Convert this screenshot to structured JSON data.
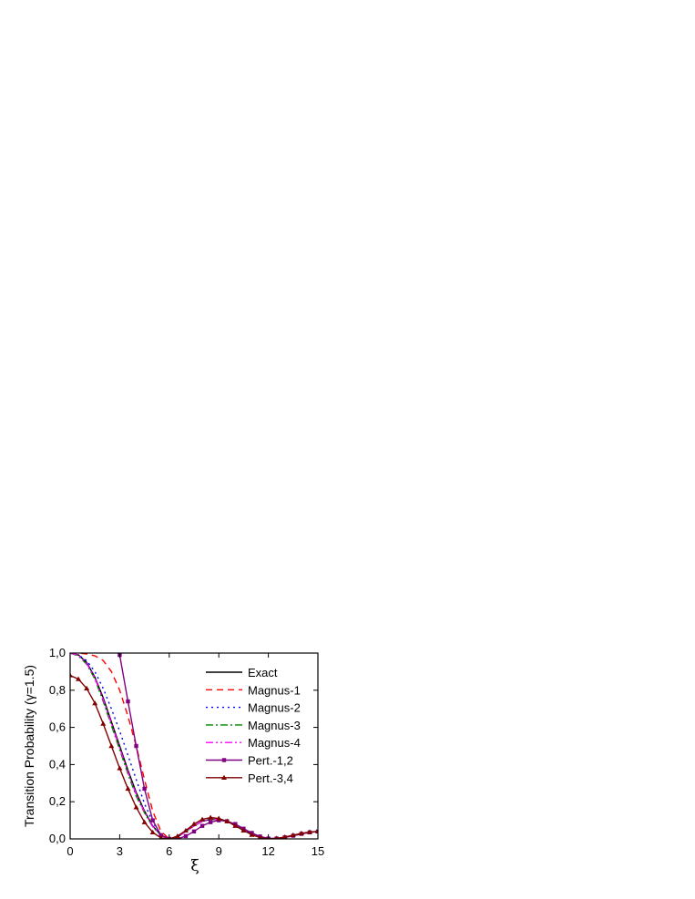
{
  "chart_data": {
    "type": "line",
    "xlabel": "ξ",
    "ylabel": "Transition Probability (γ=1.5)",
    "x": [
      0,
      0.5,
      1,
      1.5,
      2,
      2.5,
      3,
      3.5,
      4,
      4.5,
      5,
      5.5,
      6,
      6.5,
      7,
      7.5,
      8,
      8.5,
      9,
      9.5,
      10,
      10.5,
      11,
      11.5,
      12,
      12.5,
      13,
      13.5,
      14,
      14.5,
      15
    ],
    "xlim": [
      0,
      15
    ],
    "xticks": [
      0,
      3,
      6,
      9,
      12,
      15
    ],
    "ylim": [
      0,
      1
    ],
    "yticks": [
      {
        "value": 0,
        "label": "0,0"
      },
      {
        "value": 0.2,
        "label": "0,2"
      },
      {
        "value": 0.4,
        "label": "0,4"
      },
      {
        "value": 0.6,
        "label": "0,6"
      },
      {
        "value": 0.8,
        "label": "0,8"
      },
      {
        "value": 1,
        "label": "1,0"
      }
    ],
    "legend": "upper right",
    "series": [
      {
        "name": "Exact",
        "color": "#000000",
        "dash": "none",
        "marker": "none",
        "values": [
          1.0,
          0.99,
          0.95,
          0.87,
          0.76,
          0.63,
          0.5,
          0.37,
          0.25,
          0.15,
          0.07,
          0.02,
          0.0,
          0.01,
          0.04,
          0.07,
          0.095,
          0.105,
          0.105,
          0.095,
          0.075,
          0.05,
          0.03,
          0.012,
          0.002,
          0.002,
          0.008,
          0.017,
          0.027,
          0.035,
          0.04
        ]
      },
      {
        "name": "Magnus-1",
        "color": "#ff0000",
        "dash": "7,5",
        "marker": "none",
        "values": [
          1.0,
          1.0,
          0.995,
          0.985,
          0.96,
          0.9,
          0.8,
          0.66,
          0.5,
          0.32,
          0.15,
          0.04,
          0.0,
          0.01,
          0.04,
          0.07,
          0.095,
          0.105,
          0.105,
          0.095,
          0.075,
          0.05,
          0.03,
          0.012,
          0.002,
          0.002,
          0.008,
          0.017,
          0.027,
          0.035,
          0.04
        ]
      },
      {
        "name": "Magnus-2",
        "color": "#0000ff",
        "dash": "2,4",
        "marker": "none",
        "values": [
          1.0,
          0.99,
          0.96,
          0.9,
          0.81,
          0.7,
          0.58,
          0.45,
          0.32,
          0.19,
          0.09,
          0.02,
          0.0,
          0.01,
          0.04,
          0.07,
          0.095,
          0.105,
          0.105,
          0.095,
          0.075,
          0.05,
          0.03,
          0.012,
          0.002,
          0.002,
          0.008,
          0.017,
          0.027,
          0.035,
          0.04
        ]
      },
      {
        "name": "Magnus-3",
        "color": "#008000",
        "dash": "8,3,2,3",
        "marker": "none",
        "values": [
          1.0,
          0.985,
          0.94,
          0.86,
          0.74,
          0.61,
          0.48,
          0.35,
          0.23,
          0.14,
          0.065,
          0.018,
          0.0,
          0.01,
          0.04,
          0.07,
          0.095,
          0.105,
          0.105,
          0.095,
          0.075,
          0.05,
          0.03,
          0.012,
          0.002,
          0.002,
          0.008,
          0.017,
          0.027,
          0.035,
          0.04
        ]
      },
      {
        "name": "Magnus-4",
        "color": "#ff00ff",
        "dash": "8,3,2,3,2,3",
        "marker": "none",
        "values": [
          1.0,
          0.99,
          0.945,
          0.865,
          0.75,
          0.62,
          0.49,
          0.36,
          0.24,
          0.145,
          0.067,
          0.019,
          0.0,
          0.01,
          0.04,
          0.07,
          0.095,
          0.105,
          0.105,
          0.095,
          0.075,
          0.05,
          0.03,
          0.012,
          0.002,
          0.002,
          0.008,
          0.017,
          0.027,
          0.035,
          0.04
        ]
      },
      {
        "name": "Pert.-1,2",
        "color": "#800080",
        "dash": "none",
        "marker": "square",
        "values": [
          null,
          null,
          null,
          null,
          null,
          null,
          0.99,
          0.74,
          0.5,
          0.27,
          0.1,
          0.02,
          0.0,
          0.0,
          0.015,
          0.04,
          0.07,
          0.09,
          0.1,
          0.095,
          0.08,
          0.055,
          0.032,
          0.013,
          0.002,
          0.002,
          0.008,
          0.017,
          0.027,
          0.035,
          0.04
        ]
      },
      {
        "name": "Pert.-3,4",
        "color": "#800000",
        "dash": "none",
        "marker": "triangle",
        "values": [
          0.88,
          0.86,
          0.81,
          0.73,
          0.62,
          0.5,
          0.38,
          0.27,
          0.17,
          0.09,
          0.035,
          0.005,
          0.0,
          0.015,
          0.045,
          0.08,
          0.105,
          0.115,
          0.11,
          0.095,
          0.07,
          0.045,
          0.022,
          0.007,
          0.0,
          0.003,
          0.01,
          0.02,
          0.03,
          0.037,
          0.04
        ]
      }
    ]
  }
}
